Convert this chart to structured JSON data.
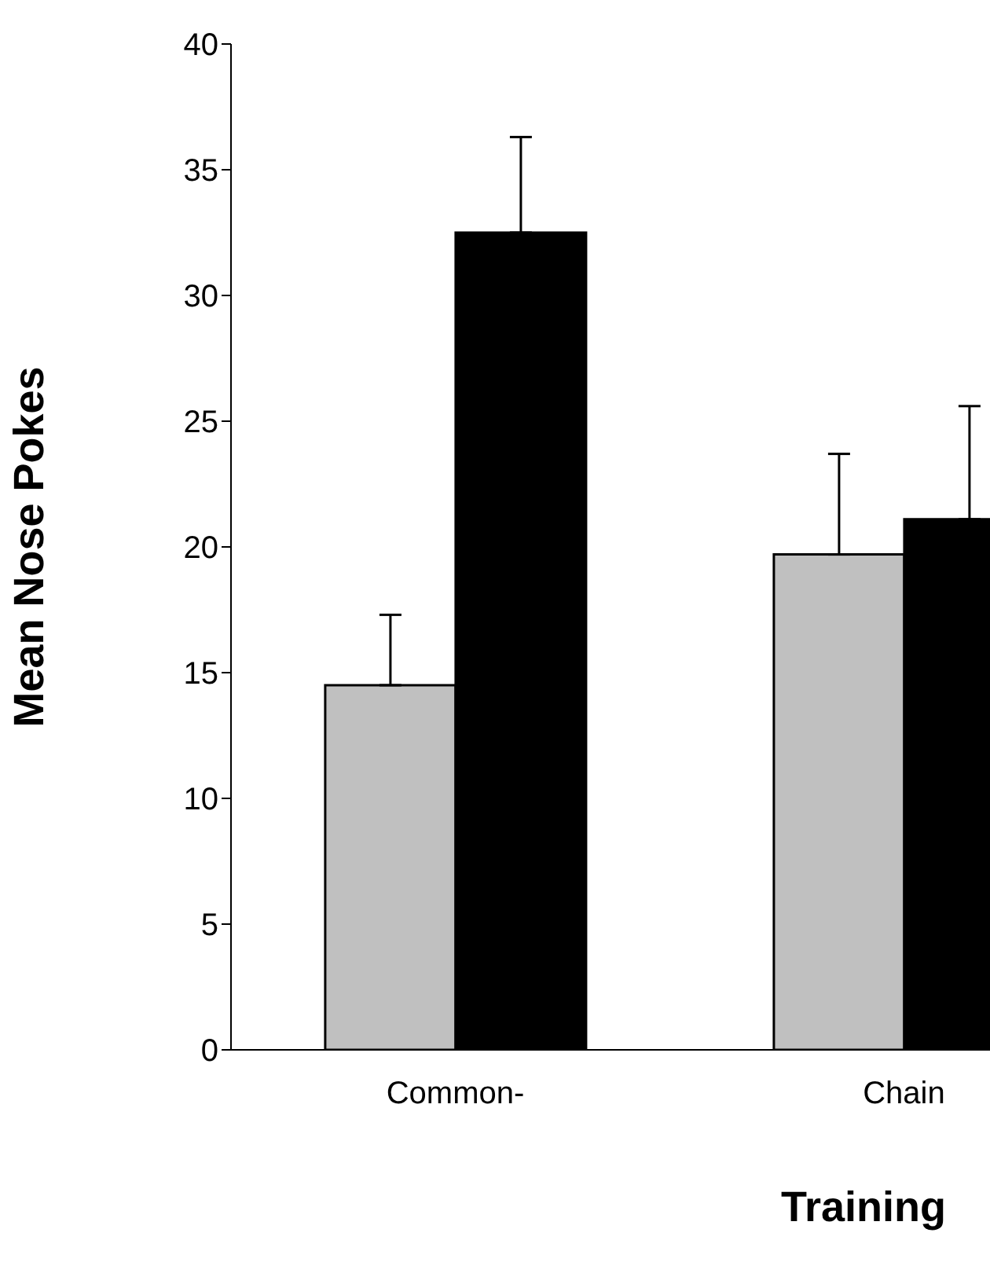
{
  "chart_data": {
    "type": "bar",
    "ylabel": "Mean Nose Pokes",
    "xlabel": "Training",
    "categories": [
      "Common-",
      "Chain"
    ],
    "series": [
      {
        "color": "#c0c0c0",
        "values": [
          14.5,
          19.7
        ],
        "errors": [
          [
            14.5,
            17.3
          ],
          [
            19.7,
            23.7
          ]
        ]
      },
      {
        "color": "#000000",
        "values": [
          32.5,
          21.1
        ],
        "errors": [
          [
            32.5,
            36.3
          ],
          [
            21.1,
            25.6
          ]
        ]
      }
    ],
    "ylim": [
      0,
      40
    ],
    "yticks": [
      0,
      5,
      10,
      15,
      20,
      25,
      30,
      35,
      40
    ],
    "grid": false,
    "legend": false
  }
}
